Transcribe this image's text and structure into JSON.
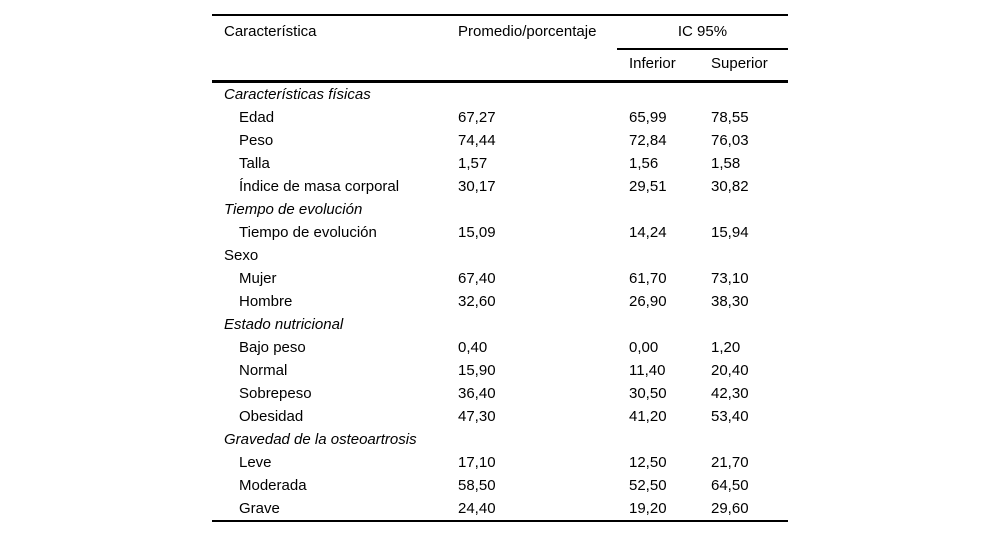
{
  "table": {
    "columns": {
      "characteristic": "Característica",
      "promedio": "Promedio/porcentaje",
      "ic_group": "IC 95%",
      "inferior": "Inferior",
      "superior": "Superior"
    },
    "rows": [
      {
        "type": "section",
        "italic": true,
        "label": "Características físicas"
      },
      {
        "type": "item",
        "label": "Edad",
        "promedio": "67,27",
        "inferior": "65,99",
        "superior": "78,55"
      },
      {
        "type": "item",
        "label": "Peso",
        "promedio": "74,44",
        "inferior": "72,84",
        "superior": "76,03"
      },
      {
        "type": "item",
        "label": "Talla",
        "promedio": "1,57",
        "inferior": "1,56",
        "superior": "1,58"
      },
      {
        "type": "item",
        "label": "Índice de masa corporal",
        "promedio": "30,17",
        "inferior": "29,51",
        "superior": "30,82"
      },
      {
        "type": "section",
        "italic": true,
        "label": "Tiempo de evolución"
      },
      {
        "type": "item",
        "label": "Tiempo de evolución",
        "promedio": "15,09",
        "inferior": "14,24",
        "superior": "15,94"
      },
      {
        "type": "section",
        "italic": false,
        "label": "Sexo"
      },
      {
        "type": "item",
        "label": "Mujer",
        "promedio": "67,40",
        "inferior": "61,70",
        "superior": "73,10"
      },
      {
        "type": "item",
        "label": "Hombre",
        "promedio": "32,60",
        "inferior": "26,90",
        "superior": "38,30"
      },
      {
        "type": "section",
        "italic": true,
        "label": "Estado nutricional"
      },
      {
        "type": "item",
        "label": "Bajo peso",
        "promedio": "0,40",
        "inferior": "0,00",
        "superior": "1,20"
      },
      {
        "type": "item",
        "label": "Normal",
        "promedio": "15,90",
        "inferior": "11,40",
        "superior": "20,40"
      },
      {
        "type": "item",
        "label": "Sobrepeso",
        "promedio": "36,40",
        "inferior": "30,50",
        "superior": "42,30"
      },
      {
        "type": "item",
        "label": "Obesidad",
        "promedio": "47,30",
        "inferior": "41,20",
        "superior": "53,40"
      },
      {
        "type": "section",
        "italic": true,
        "label": "Gravedad de la osteoartrosis"
      },
      {
        "type": "item",
        "label": "Leve",
        "promedio": "17,10",
        "inferior": "12,50",
        "superior": "21,70"
      },
      {
        "type": "item",
        "label": "Moderada",
        "promedio": "58,50",
        "inferior": "52,50",
        "superior": "64,50"
      },
      {
        "type": "item",
        "label": "Grave",
        "promedio": "24,40",
        "inferior": "19,20",
        "superior": "29,60"
      }
    ]
  }
}
